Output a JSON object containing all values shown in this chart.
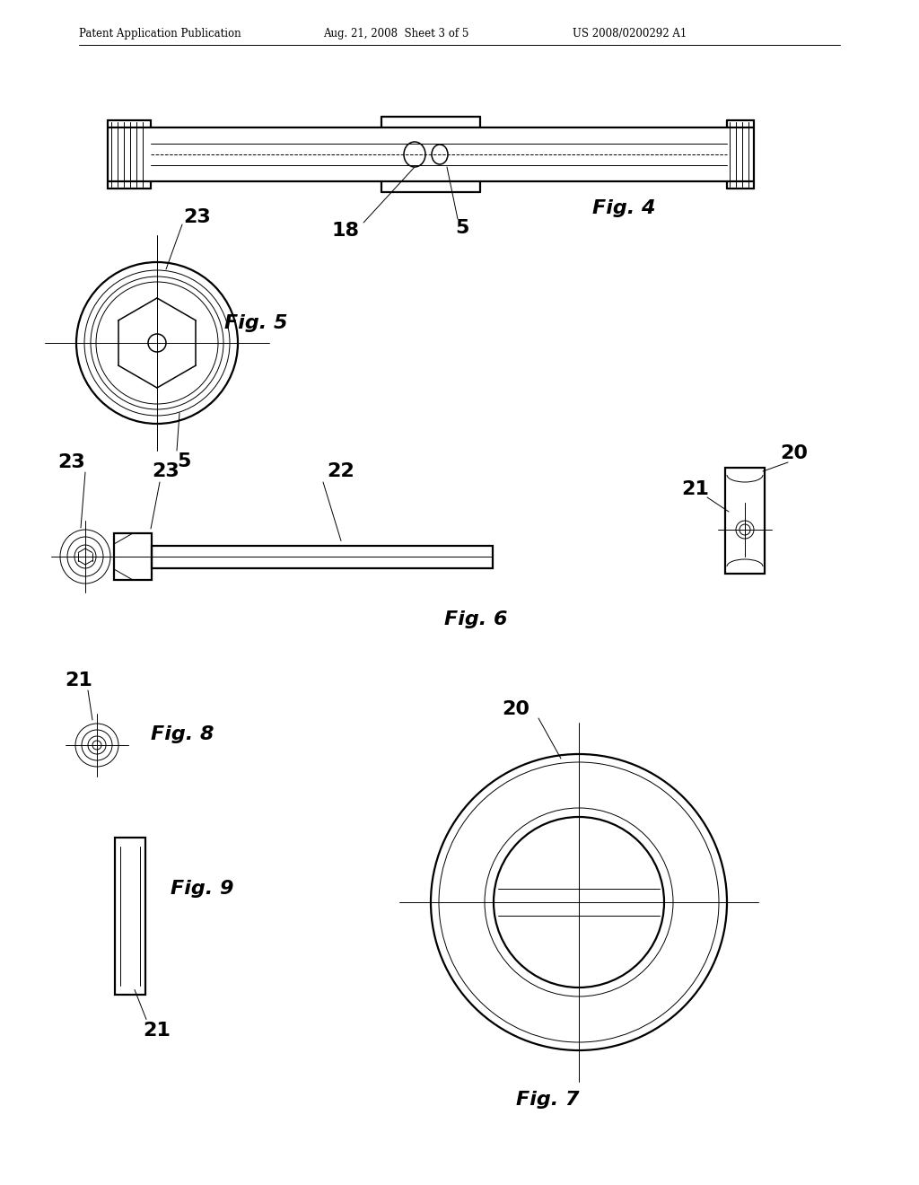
{
  "bg_color": "#ffffff",
  "line_color": "#000000",
  "header_left": "Patent Application Publication",
  "header_mid": "Aug. 21, 2008  Sheet 3 of 5",
  "header_right": "US 2008/0200292 A1",
  "fig4_label": "Fig. 4",
  "fig5_label": "Fig. 5",
  "fig6_label": "Fig. 6",
  "fig7_label": "Fig. 7",
  "fig8_label": "Fig. 8",
  "fig9_label": "Fig. 9",
  "lw_thin": 0.7,
  "lw_med": 1.1,
  "lw_thick": 1.6
}
